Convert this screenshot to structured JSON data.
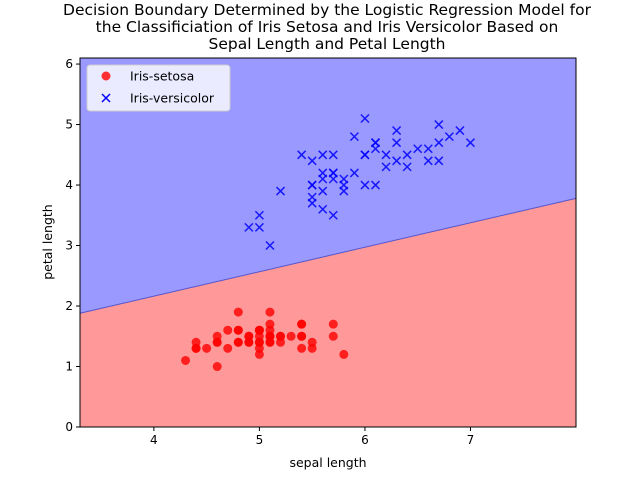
{
  "chart_data": {
    "type": "scatter",
    "title": "Decision Boundary Determined by the Logistic Regression Model for the Classificiation of Iris Setosa and Iris Versicolor Based on Sepal Length and Petal Length",
    "title_lines": [
      "Decision Boundary Determined by the Logistic Regression Model for",
      "the Classificiation of Iris Setosa and Iris Versicolor Based on",
      "Sepal Length and Petal Length"
    ],
    "xlabel": "sepal length",
    "ylabel": "petal length",
    "xlim": [
      3.3,
      8.0
    ],
    "ylim": [
      0,
      6.1
    ],
    "xticks": [
      4,
      5,
      6,
      7
    ],
    "yticks": [
      0,
      1,
      2,
      3,
      4,
      5,
      6
    ],
    "grid": false,
    "legend_position": "top-left",
    "decision_boundary": {
      "points": [
        [
          3.3,
          1.88
        ],
        [
          8.0,
          3.78
        ]
      ],
      "above_color": "#9999ff",
      "below_color": "#ff9999"
    },
    "series": [
      {
        "name": "Iris-setosa",
        "marker": "circle",
        "color": "#ff0000",
        "points": [
          [
            5.1,
            1.4
          ],
          [
            4.9,
            1.4
          ],
          [
            4.7,
            1.3
          ],
          [
            4.6,
            1.5
          ],
          [
            5.0,
            1.4
          ],
          [
            5.4,
            1.7
          ],
          [
            4.6,
            1.4
          ],
          [
            5.0,
            1.5
          ],
          [
            4.4,
            1.4
          ],
          [
            4.9,
            1.5
          ],
          [
            5.4,
            1.5
          ],
          [
            4.8,
            1.6
          ],
          [
            4.8,
            1.4
          ],
          [
            4.3,
            1.1
          ],
          [
            5.8,
            1.2
          ],
          [
            5.7,
            1.5
          ],
          [
            5.4,
            1.3
          ],
          [
            5.1,
            1.4
          ],
          [
            5.7,
            1.7
          ],
          [
            5.1,
            1.5
          ],
          [
            5.4,
            1.7
          ],
          [
            5.1,
            1.5
          ],
          [
            4.6,
            1.0
          ],
          [
            5.1,
            1.7
          ],
          [
            4.8,
            1.9
          ],
          [
            5.0,
            1.6
          ],
          [
            5.0,
            1.6
          ],
          [
            5.2,
            1.5
          ],
          [
            5.2,
            1.4
          ],
          [
            4.7,
            1.6
          ],
          [
            4.8,
            1.6
          ],
          [
            5.4,
            1.5
          ],
          [
            5.2,
            1.5
          ],
          [
            5.5,
            1.4
          ],
          [
            4.9,
            1.5
          ],
          [
            5.0,
            1.2
          ],
          [
            5.5,
            1.3
          ],
          [
            4.9,
            1.4
          ],
          [
            4.4,
            1.3
          ],
          [
            5.1,
            1.5
          ],
          [
            5.0,
            1.3
          ],
          [
            4.5,
            1.3
          ],
          [
            4.4,
            1.3
          ],
          [
            5.0,
            1.6
          ],
          [
            5.1,
            1.9
          ],
          [
            4.8,
            1.4
          ],
          [
            5.1,
            1.6
          ],
          [
            4.6,
            1.4
          ],
          [
            5.3,
            1.5
          ],
          [
            5.0,
            1.4
          ]
        ]
      },
      {
        "name": "Iris-versicolor",
        "marker": "x",
        "color": "#0000ff",
        "points": [
          [
            7.0,
            4.7
          ],
          [
            6.4,
            4.5
          ],
          [
            6.9,
            4.9
          ],
          [
            5.5,
            4.0
          ],
          [
            6.5,
            4.6
          ],
          [
            5.7,
            4.5
          ],
          [
            6.3,
            4.7
          ],
          [
            4.9,
            3.3
          ],
          [
            6.6,
            4.6
          ],
          [
            5.2,
            3.9
          ],
          [
            5.0,
            3.5
          ],
          [
            5.9,
            4.2
          ],
          [
            6.0,
            4.0
          ],
          [
            6.1,
            4.7
          ],
          [
            5.6,
            3.6
          ],
          [
            6.7,
            4.4
          ],
          [
            5.6,
            4.5
          ],
          [
            5.8,
            4.1
          ],
          [
            6.2,
            4.5
          ],
          [
            5.6,
            3.9
          ],
          [
            5.9,
            4.8
          ],
          [
            6.1,
            4.0
          ],
          [
            6.3,
            4.9
          ],
          [
            6.1,
            4.7
          ],
          [
            6.4,
            4.3
          ],
          [
            6.6,
            4.4
          ],
          [
            6.8,
            4.8
          ],
          [
            6.7,
            5.0
          ],
          [
            6.0,
            4.5
          ],
          [
            5.7,
            3.5
          ],
          [
            5.5,
            3.8
          ],
          [
            5.5,
            3.7
          ],
          [
            5.8,
            3.9
          ],
          [
            6.0,
            5.1
          ],
          [
            5.4,
            4.5
          ],
          [
            6.0,
            4.5
          ],
          [
            6.7,
            4.7
          ],
          [
            6.3,
            4.4
          ],
          [
            5.6,
            4.1
          ],
          [
            5.5,
            4.0
          ],
          [
            5.5,
            4.4
          ],
          [
            6.1,
            4.6
          ],
          [
            5.8,
            4.0
          ],
          [
            5.0,
            3.3
          ],
          [
            5.6,
            4.2
          ],
          [
            5.7,
            4.2
          ],
          [
            5.7,
            4.2
          ],
          [
            6.2,
            4.3
          ],
          [
            5.1,
            3.0
          ],
          [
            5.7,
            4.1
          ]
        ]
      }
    ]
  }
}
